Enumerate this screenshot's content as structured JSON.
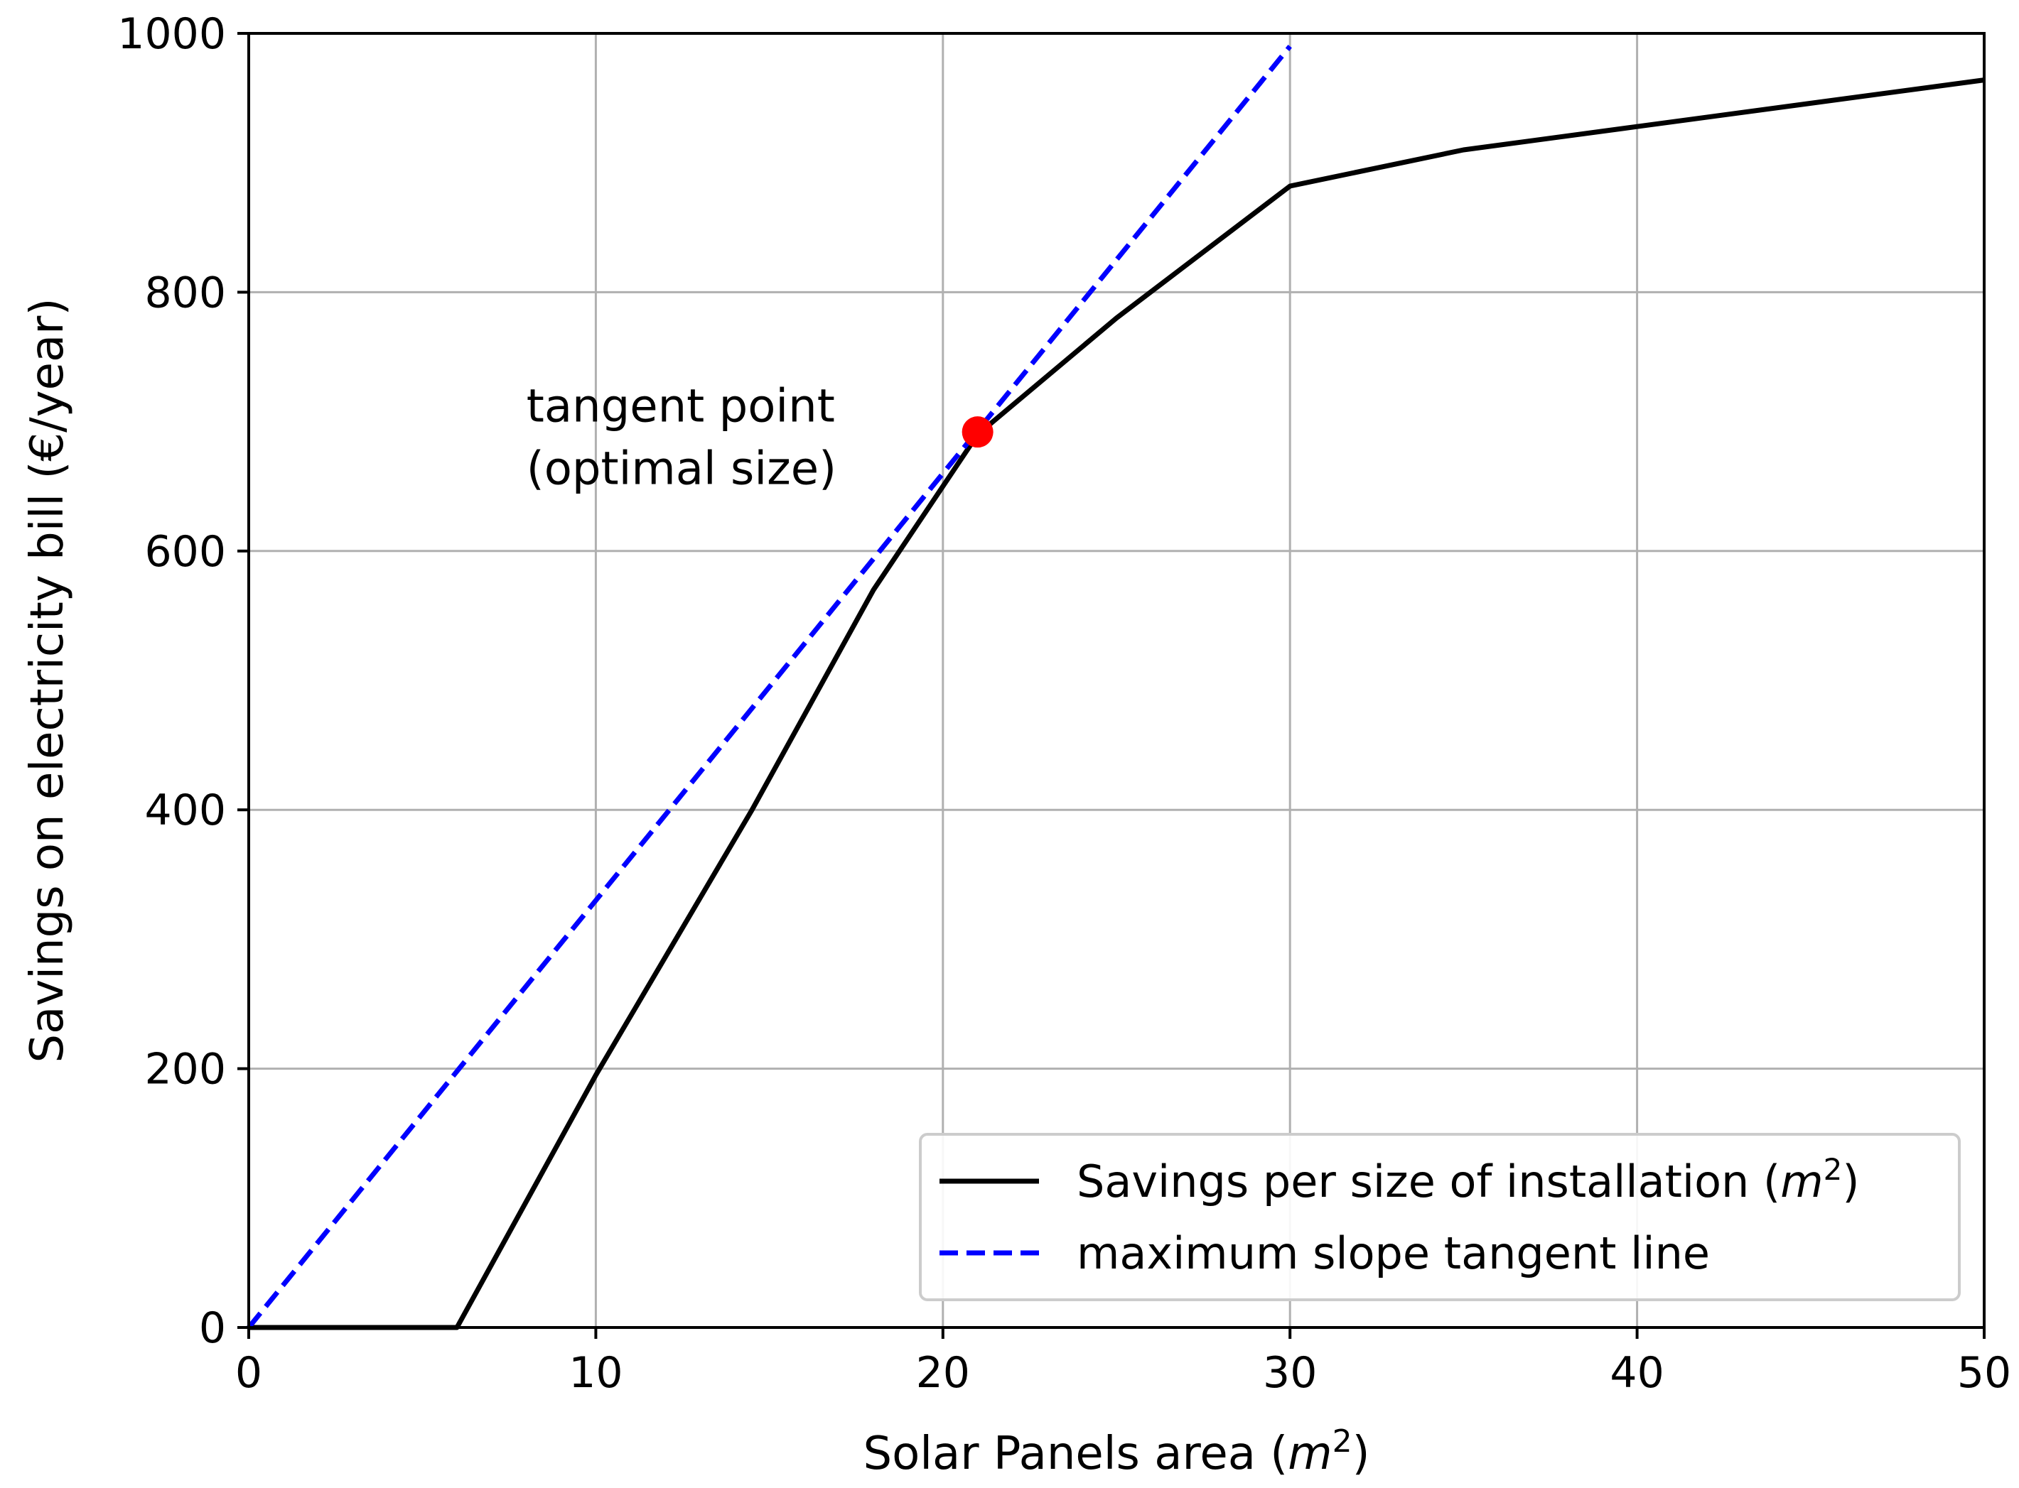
{
  "chart_data": {
    "type": "line",
    "title": "",
    "xlabel": {
      "prefix": "Solar Panels area (",
      "var": "m",
      "sup": "2",
      "suffix": ")"
    },
    "ylabel": "Savings on electricity bill (€/year)",
    "xlim": [
      0,
      50
    ],
    "ylim": [
      0,
      1000
    ],
    "xticks": [
      0,
      10,
      20,
      30,
      40,
      50
    ],
    "xtick_labels": [
      "0",
      "10",
      "20",
      "30",
      "40",
      "50"
    ],
    "yticks": [
      0,
      200,
      400,
      600,
      800,
      1000
    ],
    "ytick_labels": [
      "0",
      "200",
      "400",
      "600",
      "800",
      "1000"
    ],
    "grid": true,
    "legend_position": "bottom-right",
    "series": [
      {
        "name": {
          "prefix": "Savings per size of installation (",
          "var": "m",
          "sup": "2",
          "suffix": ")"
        },
        "style": "solid",
        "color": "#000000",
        "x": [
          0,
          6,
          10,
          14.5,
          18,
          21,
          25,
          30,
          35,
          40,
          50
        ],
        "y": [
          0,
          0,
          195,
          400,
          570,
          690,
          780,
          882,
          910,
          928,
          964
        ]
      },
      {
        "name": "maximum slope tangent line",
        "style": "dashed",
        "color": "#0000ff",
        "x": [
          0,
          30
        ],
        "y": [
          0,
          990
        ]
      }
    ],
    "marker": {
      "x": 21,
      "y": 692,
      "color": "#ff0000"
    },
    "annotation": {
      "lines": [
        "tangent point",
        "(optimal size)"
      ],
      "x": 8,
      "y": 700
    }
  }
}
